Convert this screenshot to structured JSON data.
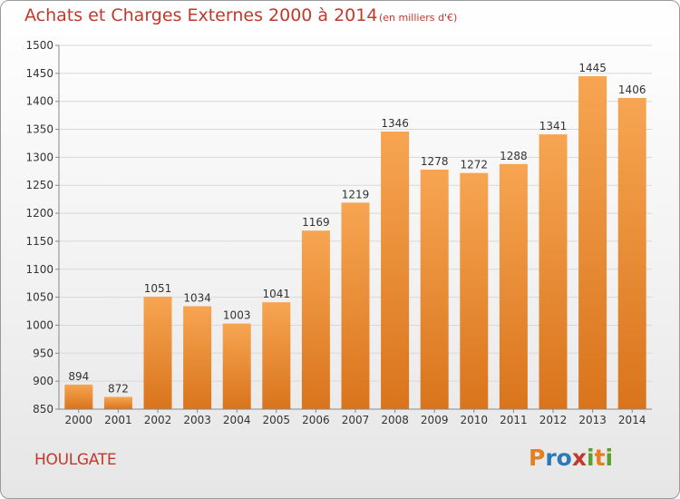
{
  "header": {
    "title": "Achats et Charges Externes 2000 à 2014",
    "unit": "(en milliers d'€)"
  },
  "footer": {
    "city": "HOULGATE",
    "logo_letters": [
      "P",
      "r",
      "o",
      "x",
      "i",
      "t",
      "i"
    ],
    "logo_colors": [
      "#e67e22",
      "#2a7ab8",
      "#2a7ab8",
      "#c0392b",
      "#5aa02c",
      "#e67e22",
      "#5aa02c"
    ]
  },
  "chart_data": {
    "type": "bar",
    "title": "Achats et Charges Externes 2000 à 2014",
    "xlabel": "",
    "ylabel": "",
    "categories": [
      "2000",
      "2001",
      "2002",
      "2003",
      "2004",
      "2005",
      "2006",
      "2007",
      "2008",
      "2009",
      "2010",
      "2011",
      "2012",
      "2013",
      "2014"
    ],
    "values": [
      894,
      872,
      1051,
      1034,
      1003,
      1041,
      1169,
      1219,
      1346,
      1278,
      1272,
      1288,
      1341,
      1445,
      1406
    ],
    "ylim": [
      850,
      1500
    ],
    "yticks": [
      850,
      900,
      950,
      1000,
      1050,
      1100,
      1150,
      1200,
      1250,
      1300,
      1350,
      1400,
      1450,
      1500
    ],
    "grid": true,
    "legend": "none",
    "bar_color": "#f0963c"
  }
}
